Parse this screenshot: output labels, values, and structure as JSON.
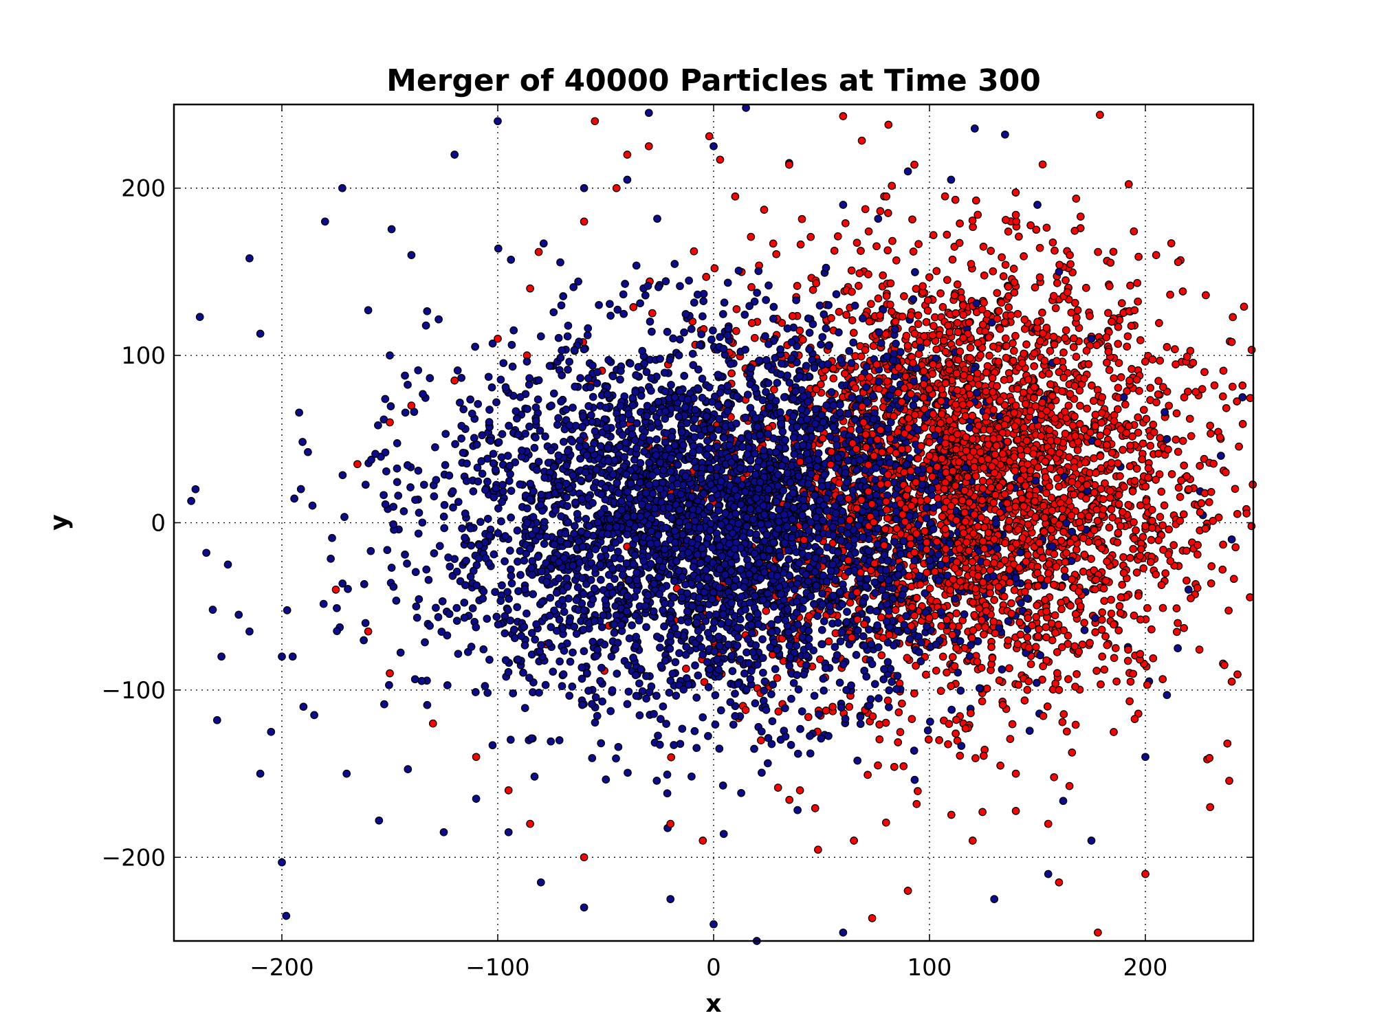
{
  "chart_data": {
    "type": "scatter",
    "title": "Merger of 40000 Particles at Time 300",
    "xlabel": "x",
    "ylabel": "y",
    "xlim": [
      -250,
      250
    ],
    "ylim": [
      -250,
      250
    ],
    "xticks": [
      -200,
      -100,
      0,
      100,
      200
    ],
    "yticks": [
      -200,
      -100,
      0,
      100,
      200
    ],
    "xtick_labels": [
      "−200",
      "−100",
      "0",
      "100",
      "200"
    ],
    "ytick_labels": [
      "−200",
      "−100",
      "0",
      "100",
      "200"
    ],
    "grid": true,
    "series": [
      {
        "color": "#ff0000",
        "center": [
          105,
          25
        ],
        "sigma": [
          55,
          65
        ],
        "points": [
          [
            -2,
            231
          ],
          [
            3,
            217
          ],
          [
            -30,
            225
          ],
          [
            35,
            214
          ],
          [
            60,
            243
          ],
          [
            93,
            214
          ],
          [
            112,
            193
          ],
          [
            140,
            184
          ],
          [
            170,
            183
          ],
          [
            165,
            160
          ],
          [
            212,
            167
          ],
          [
            205,
            160
          ],
          [
            228,
            136
          ],
          [
            240,
            108
          ],
          [
            245,
            82
          ],
          [
            230,
            58
          ],
          [
            220,
            20
          ],
          [
            200,
            -2
          ],
          [
            190,
            -30
          ],
          [
            215,
            -60
          ],
          [
            240,
            -95
          ],
          [
            238,
            -132
          ],
          [
            230,
            -170
          ],
          [
            200,
            -210
          ],
          [
            178,
            -245
          ],
          [
            160,
            -215
          ],
          [
            155,
            -180
          ],
          [
            140,
            -150
          ],
          [
            120,
            -190
          ],
          [
            90,
            -220
          ],
          [
            65,
            -190
          ],
          [
            40,
            -160
          ],
          [
            -5,
            -190
          ],
          [
            -20,
            -180
          ],
          [
            -60,
            -200
          ],
          [
            -85,
            -180
          ],
          [
            -95,
            -160
          ],
          [
            -110,
            -140
          ],
          [
            -130,
            -120
          ],
          [
            -150,
            -90
          ],
          [
            -160,
            -65
          ],
          [
            -175,
            -40
          ],
          [
            -165,
            35
          ],
          [
            -150,
            60
          ],
          [
            -140,
            70
          ],
          [
            -120,
            85
          ],
          [
            -100,
            110
          ],
          [
            -85,
            140
          ],
          [
            -60,
            180
          ],
          [
            -40,
            220
          ],
          [
            -55,
            240
          ],
          [
            -45,
            200
          ],
          [
            10,
            195
          ],
          [
            80,
            195
          ],
          [
            125,
            165
          ],
          [
            195,
            127
          ],
          [
            210,
            105
          ],
          [
            180,
            75
          ],
          [
            160,
            90
          ],
          [
            150,
            120
          ],
          [
            140,
            70
          ],
          [
            120,
            50
          ],
          [
            100,
            40
          ],
          [
            90,
            20
          ],
          [
            110,
            10
          ],
          [
            130,
            -10
          ],
          [
            150,
            -30
          ],
          [
            170,
            -50
          ],
          [
            180,
            -80
          ],
          [
            160,
            -100
          ]
        ]
      },
      {
        "color": "#0b0b8f",
        "center": [
          0,
          0
        ],
        "sigma": [
          55,
          55
        ],
        "points": [
          [
            -240,
            20
          ],
          [
            -242,
            13
          ],
          [
            -235,
            -18
          ],
          [
            -238,
            123
          ],
          [
            -225,
            -25
          ],
          [
            -220,
            -55
          ],
          [
            -215,
            158
          ],
          [
            -210,
            113
          ],
          [
            -210,
            -150
          ],
          [
            -205,
            -125
          ],
          [
            -200,
            -203
          ],
          [
            -198,
            -235
          ],
          [
            -195,
            -80
          ],
          [
            -190,
            -110
          ],
          [
            -180,
            180
          ],
          [
            -172,
            200
          ],
          [
            -160,
            127
          ],
          [
            -150,
            100
          ],
          [
            -140,
            160
          ],
          [
            -120,
            220
          ],
          [
            -100,
            240
          ],
          [
            -60,
            200
          ],
          [
            -30,
            245
          ],
          [
            -40,
            205
          ],
          [
            0,
            225
          ],
          [
            15,
            248
          ],
          [
            35,
            215
          ],
          [
            60,
            190
          ],
          [
            90,
            210
          ],
          [
            110,
            205
          ],
          [
            135,
            232
          ],
          [
            150,
            190
          ],
          [
            160,
            150
          ],
          [
            175,
            110
          ],
          [
            190,
            75
          ],
          [
            210,
            50
          ],
          [
            235,
            40
          ],
          [
            245,
            75
          ],
          [
            240,
            -10
          ],
          [
            220,
            -40
          ],
          [
            215,
            -75
          ],
          [
            210,
            -103
          ],
          [
            200,
            -140
          ],
          [
            175,
            -190
          ],
          [
            155,
            -210
          ],
          [
            130,
            -225
          ],
          [
            90,
            -220
          ],
          [
            60,
            -245
          ],
          [
            20,
            -250
          ],
          [
            0,
            -240
          ],
          [
            -20,
            -225
          ],
          [
            -60,
            -230
          ],
          [
            -80,
            -215
          ],
          [
            -95,
            -185
          ],
          [
            -110,
            -165
          ],
          [
            -125,
            -185
          ],
          [
            -155,
            -178
          ],
          [
            -170,
            -150
          ],
          [
            -185,
            -115
          ],
          [
            -200,
            -80
          ],
          [
            -215,
            -65
          ],
          [
            -228,
            -80
          ],
          [
            -232,
            -52
          ],
          [
            -230,
            -118
          ]
        ]
      }
    ]
  }
}
